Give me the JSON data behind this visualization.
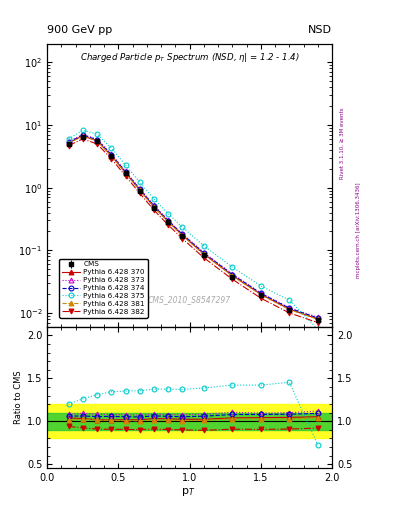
{
  "title_top_left": "900 GeV pp",
  "title_top_right": "NSD",
  "watermark": "CMS_2010_S8547297",
  "right_label_top": "Rivet 3.1.10, ≥ 3M events",
  "right_label_bot": "mcplots.cern.ch [arXiv:1306.3436]",
  "cms_x": [
    0.15,
    0.25,
    0.35,
    0.45,
    0.55,
    0.65,
    0.75,
    0.85,
    0.95,
    1.1,
    1.3,
    1.5,
    1.7,
    1.9
  ],
  "cms_y": [
    5.0,
    6.5,
    5.5,
    3.2,
    1.7,
    0.9,
    0.48,
    0.28,
    0.17,
    0.085,
    0.038,
    0.019,
    0.011,
    0.0076
  ],
  "cms_yerr": [
    0.35,
    0.45,
    0.38,
    0.22,
    0.12,
    0.065,
    0.035,
    0.02,
    0.013,
    0.006,
    0.003,
    0.0015,
    0.001,
    0.0006
  ],
  "p370_x": [
    0.15,
    0.25,
    0.35,
    0.45,
    0.55,
    0.65,
    0.75,
    0.85,
    0.95,
    1.1,
    1.3,
    1.5,
    1.7,
    1.9
  ],
  "p370_y": [
    5.2,
    6.7,
    5.6,
    3.25,
    1.73,
    0.915,
    0.495,
    0.288,
    0.174,
    0.087,
    0.0395,
    0.0198,
    0.0115,
    0.008
  ],
  "p370_color": "#cc0000",
  "p370_marker": "^",
  "p370_ls": "-",
  "p373_x": [
    0.15,
    0.25,
    0.35,
    0.45,
    0.55,
    0.65,
    0.75,
    0.85,
    0.95,
    1.1,
    1.3,
    1.5,
    1.7,
    1.9
  ],
  "p373_y": [
    5.4,
    7.1,
    5.95,
    3.45,
    1.83,
    0.965,
    0.52,
    0.302,
    0.183,
    0.092,
    0.042,
    0.0208,
    0.0121,
    0.0085
  ],
  "p373_color": "#cc00cc",
  "p373_marker": "^",
  "p373_ls": ":",
  "p374_x": [
    0.15,
    0.25,
    0.35,
    0.45,
    0.55,
    0.65,
    0.75,
    0.85,
    0.95,
    1.1,
    1.3,
    1.5,
    1.7,
    1.9
  ],
  "p374_y": [
    5.3,
    6.9,
    5.8,
    3.38,
    1.79,
    0.945,
    0.51,
    0.296,
    0.179,
    0.09,
    0.041,
    0.0205,
    0.0119,
    0.0083
  ],
  "p374_color": "#0000cc",
  "p374_marker": "o",
  "p374_ls": "--",
  "p375_x": [
    0.15,
    0.25,
    0.35,
    0.45,
    0.55,
    0.65,
    0.75,
    0.85,
    0.95,
    1.1,
    1.3,
    1.5,
    1.7,
    1.9
  ],
  "p375_y": [
    6.0,
    8.2,
    7.2,
    4.3,
    2.3,
    1.22,
    0.66,
    0.385,
    0.233,
    0.118,
    0.054,
    0.027,
    0.016,
    0.0055
  ],
  "p375_color": "#00cccc",
  "p375_marker": "o",
  "p375_ls": ":",
  "p381_x": [
    0.15,
    0.25,
    0.35,
    0.45,
    0.55,
    0.65,
    0.75,
    0.85,
    0.95,
    1.1,
    1.3,
    1.5,
    1.7,
    1.9
  ],
  "p381_y": [
    5.1,
    6.65,
    5.58,
    3.23,
    1.71,
    0.905,
    0.488,
    0.284,
    0.171,
    0.086,
    0.039,
    0.0195,
    0.0113,
    0.0079
  ],
  "p381_color": "#cc8800",
  "p381_marker": "^",
  "p381_ls": "--",
  "p382_x": [
    0.15,
    0.25,
    0.35,
    0.45,
    0.55,
    0.65,
    0.75,
    0.85,
    0.95,
    1.1,
    1.3,
    1.5,
    1.7,
    1.9
  ],
  "p382_y": [
    4.7,
    6.0,
    5.0,
    2.9,
    1.54,
    0.812,
    0.437,
    0.253,
    0.153,
    0.076,
    0.0345,
    0.0172,
    0.01,
    0.007
  ],
  "p382_color": "#cc0000",
  "p382_marker": "v",
  "p382_ls": "-.",
  "ylim_main": [
    0.006,
    200
  ],
  "xlim": [
    0.0,
    2.0
  ],
  "ylim_ratio": [
    0.45,
    2.1
  ],
  "band_green_lo": 0.9,
  "band_green_hi": 1.1,
  "band_yellow_lo": 0.8,
  "band_yellow_hi": 1.2
}
